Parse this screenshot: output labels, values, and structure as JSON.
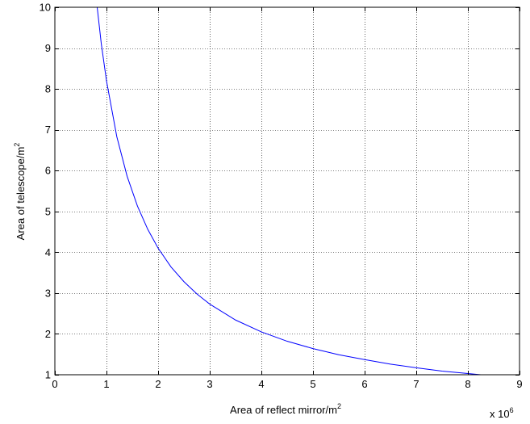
{
  "chart_data": {
    "type": "line",
    "title": "",
    "xlabel": "Area of reflect mirror/m",
    "xlabel_superscript": "2",
    "ylabel": "Area of telescope/m",
    "ylabel_superscript": "2",
    "x_scale_factor_label": "x 10",
    "x_scale_factor_exponent": "6",
    "xlim": [
      0,
      9
    ],
    "ylim": [
      1,
      10
    ],
    "x_ticks": [
      "0",
      "1",
      "2",
      "3",
      "4",
      "5",
      "6",
      "7",
      "8",
      "9"
    ],
    "y_ticks": [
      "1",
      "2",
      "3",
      "4",
      "5",
      "6",
      "7",
      "8",
      "9",
      "10"
    ],
    "grid": true,
    "line_color": "#0000ff",
    "series": [
      {
        "name": "",
        "x": [
          0.82,
          0.9,
          1.0,
          1.2,
          1.4,
          1.6,
          1.8,
          2.0,
          2.25,
          2.5,
          2.75,
          3.0,
          3.5,
          4.0,
          4.5,
          5.0,
          5.5,
          6.0,
          6.5,
          7.0,
          7.5,
          8.0,
          8.25
        ],
        "y": [
          10.0,
          9.1,
          8.2,
          6.83,
          5.86,
          5.13,
          4.56,
          4.1,
          3.64,
          3.28,
          2.98,
          2.73,
          2.34,
          2.05,
          1.82,
          1.64,
          1.49,
          1.37,
          1.26,
          1.17,
          1.09,
          1.03,
          1.0
        ]
      }
    ]
  }
}
